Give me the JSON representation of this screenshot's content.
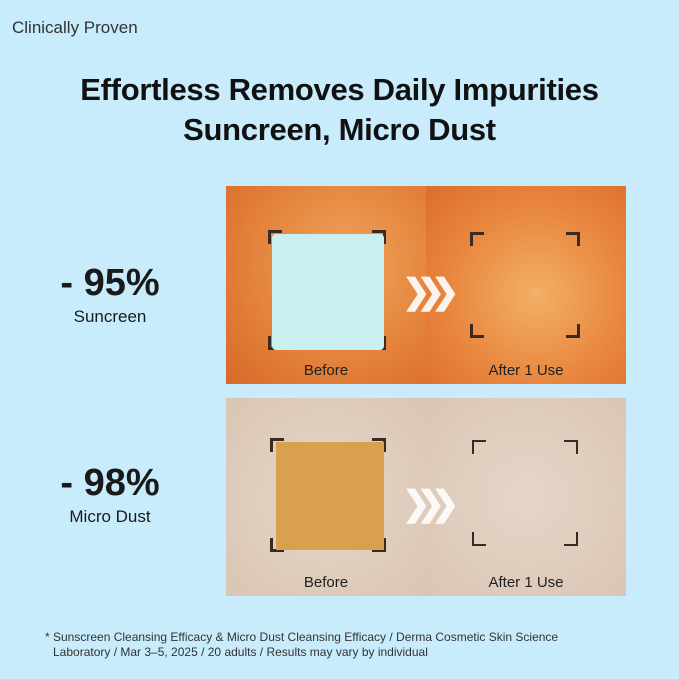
{
  "tag": "Clinically Proven",
  "title": {
    "line1": "Effortless Removes Daily Impurities",
    "line2": "Suncreen, Micro Dust"
  },
  "results": [
    {
      "value": "- 95%",
      "label": "Suncreen",
      "before": "Before",
      "after": "After 1 Use"
    },
    {
      "value": "- 98%",
      "label": "Micro Dust",
      "before": "Before",
      "after": "After 1 Use"
    }
  ],
  "arrow_glyph": "❯❯❯",
  "footnote": {
    "line1": "* Sunscreen Cleansing Efficacy & Micro Dust Cleansing Efficacy / Derma Cosmetic Skin Science",
    "line2": "Laboratory / Mar 3–5, 2025 / 20 adults / Results may vary by individual"
  },
  "colors": {
    "background": "#c8ecfb",
    "sunscreen_patch": "#c9f0ee",
    "dust_patch": "#d9a050"
  }
}
